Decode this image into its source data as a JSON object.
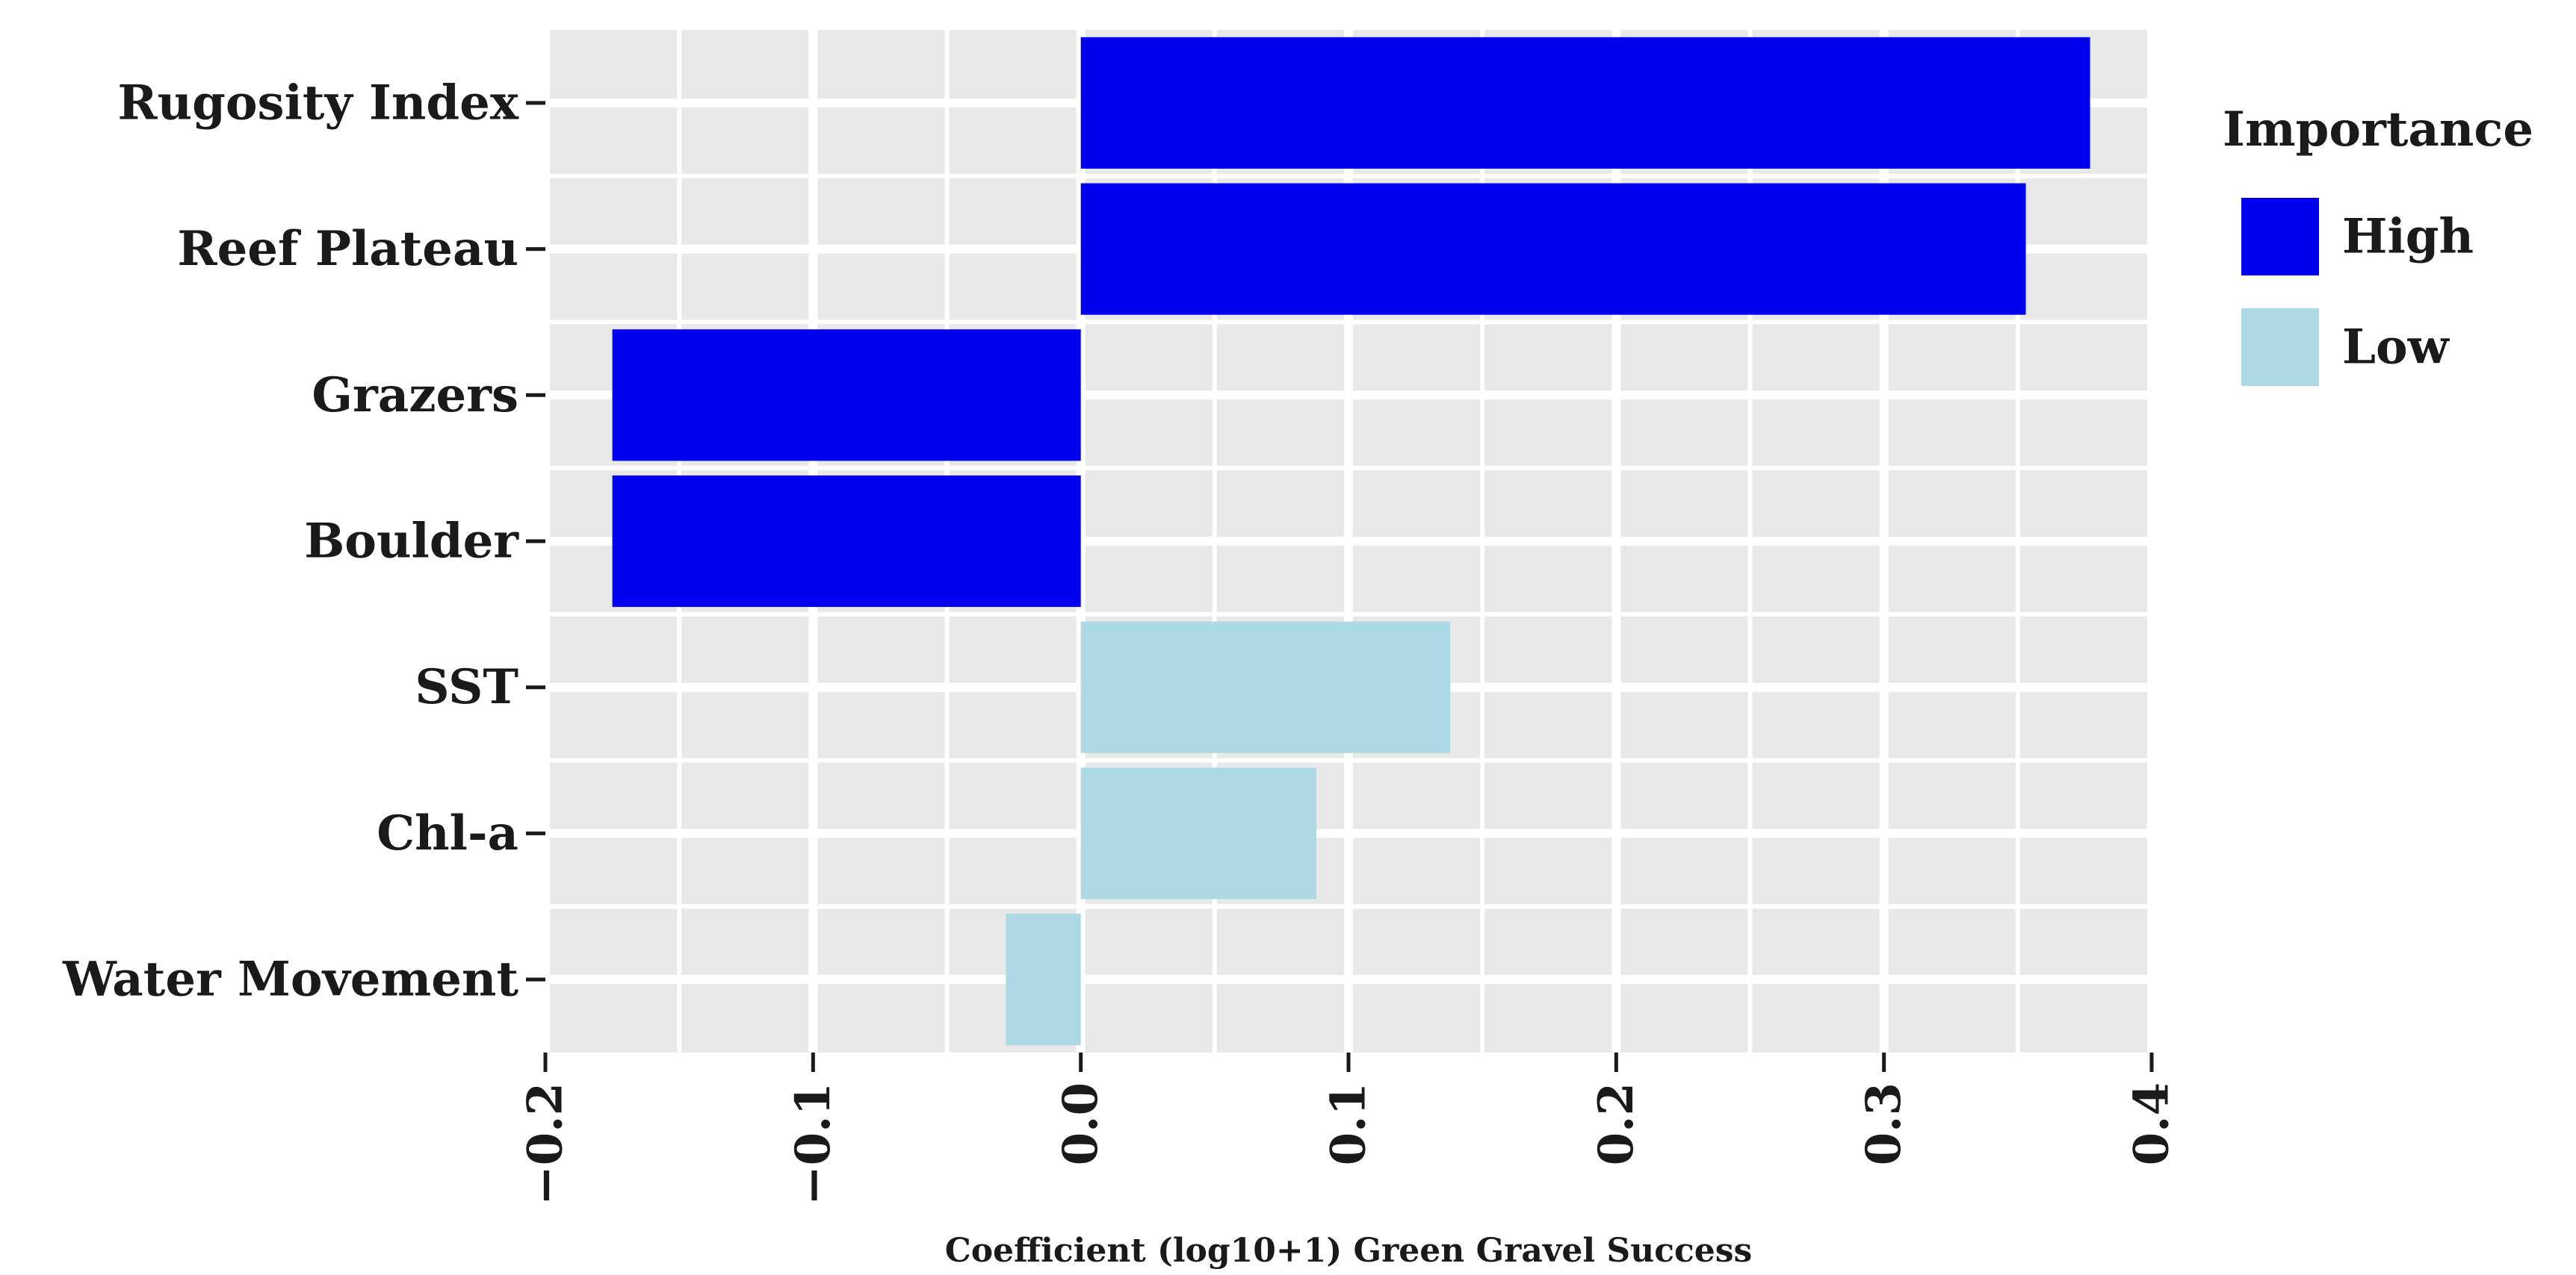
{
  "chart_data": {
    "type": "bar",
    "orientation": "horizontal",
    "categories": [
      "Rugosity Index",
      "Reef Plateau",
      "Grazers",
      "Boulder",
      "SST",
      "Chl-a",
      "Water Movement"
    ],
    "values": [
      0.377,
      0.353,
      -0.175,
      -0.175,
      0.138,
      0.088,
      -0.028
    ],
    "importance": [
      "High",
      "High",
      "High",
      "High",
      "Low",
      "Low",
      "Low"
    ],
    "xlabel": "Coefficient (log10+1) Green Gravel Success",
    "ylabel": "",
    "xlim": [
      -0.2,
      0.4
    ],
    "xticks": [
      -0.2,
      -0.1,
      0.0,
      0.1,
      0.2,
      0.3,
      0.4
    ],
    "xtick_labels": [
      "−0.2",
      "−0.1",
      "0.0",
      "0.1",
      "0.2",
      "0.3",
      "0.4"
    ],
    "grid": true,
    "legend": {
      "title": "Importance",
      "placement": "right",
      "entries": [
        {
          "label": "High",
          "color": "#0000ee"
        },
        {
          "label": "Low",
          "color": "#add8e6"
        }
      ]
    },
    "colors": {
      "High": "#0000ee",
      "Low": "#add8e6",
      "panel": "#e8e8e8",
      "grid": "#ffffff"
    }
  }
}
